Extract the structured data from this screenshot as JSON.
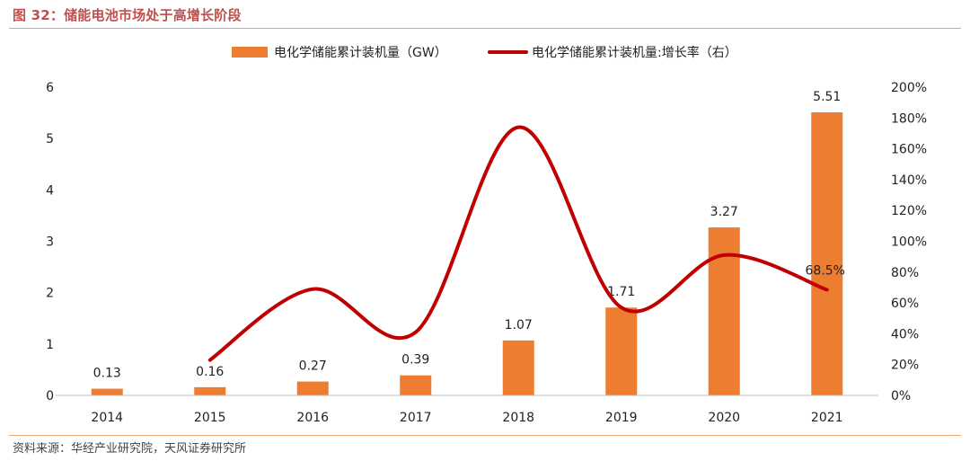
{
  "figure_title": "图 32：储能电池市场处于高增长阶段",
  "source_note": "资料来源：华经产业研究院，天风证券研究所",
  "chart_data": {
    "type": "bar",
    "categories": [
      "2014",
      "2015",
      "2016",
      "2017",
      "2018",
      "2019",
      "2020",
      "2021"
    ],
    "series": [
      {
        "name": "电化学储能累计装机量（GW）",
        "kind": "bar",
        "axis": "left",
        "color": "#ed7d31",
        "values": [
          0.13,
          0.16,
          0.27,
          0.39,
          1.07,
          1.71,
          3.27,
          5.51
        ],
        "labels": [
          "0.13",
          "0.16",
          "0.27",
          "0.39",
          "1.07",
          "1.71",
          "3.27",
          "5.51"
        ]
      },
      {
        "name": "电化学储能累计装机量:增长率（右）",
        "kind": "line",
        "axis": "right",
        "color": "#c00000",
        "values": [
          null,
          23,
          69,
          41,
          174,
          57,
          91,
          68.5
        ],
        "end_label": "68.5%"
      }
    ],
    "y_left": {
      "min": 0,
      "max": 6,
      "ticks": [
        "0",
        "1",
        "2",
        "3",
        "4",
        "5",
        "6"
      ]
    },
    "y_right": {
      "min": 0,
      "max": 200,
      "ticks": [
        "0%",
        "20%",
        "40%",
        "60%",
        "80%",
        "100%",
        "120%",
        "140%",
        "160%",
        "180%",
        "200%"
      ]
    },
    "legend_position": "top",
    "grid": false
  }
}
